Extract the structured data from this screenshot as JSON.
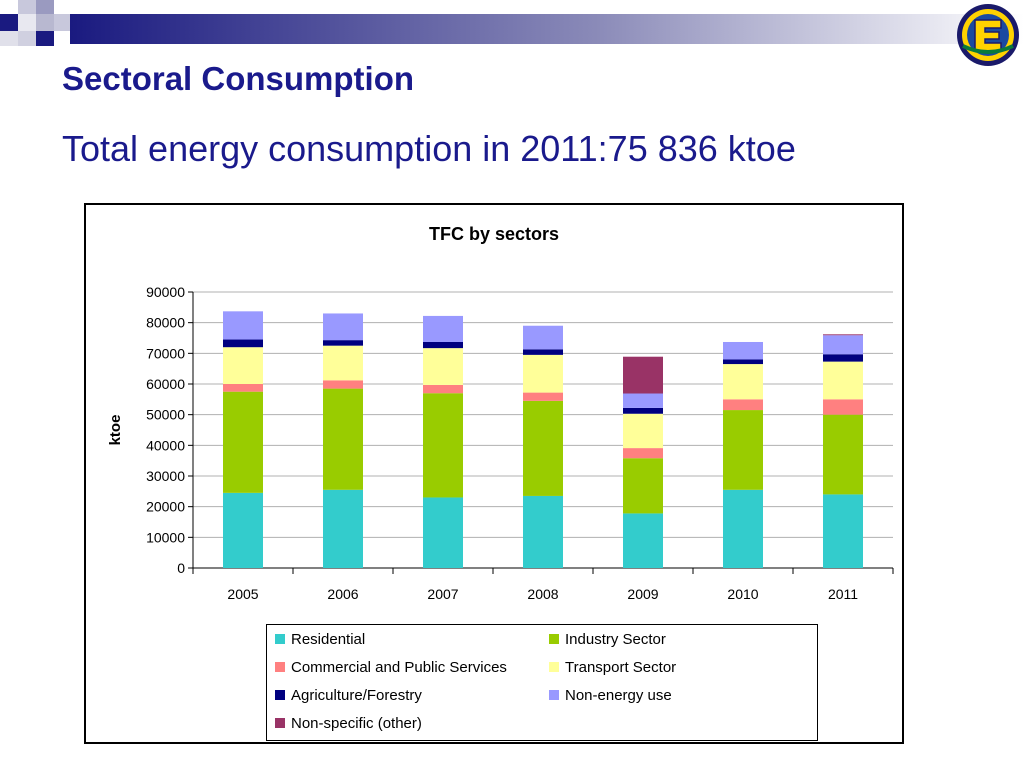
{
  "slide": {
    "title": "Sectoral Consumption",
    "subtitle": "Total energy consumption in 2011:75 836 ktoe"
  },
  "chart_data": {
    "type": "bar",
    "stacked": true,
    "title": "TFC by sectors",
    "xlabel": "",
    "ylabel": "ktoe",
    "ylim": [
      0,
      90000
    ],
    "yticks": [
      "0",
      "10000",
      "20000",
      "30000",
      "40000",
      "50000",
      "60000",
      "70000",
      "80000",
      "90000"
    ],
    "categories": [
      "2005",
      "2006",
      "2007",
      "2008",
      "2009",
      "2010",
      "2011"
    ],
    "grid": true,
    "legend_position": "bottom",
    "series": [
      {
        "name": "Residential",
        "color": "#33cccc",
        "values": [
          24500,
          25500,
          23000,
          23500,
          17800,
          25500,
          24000
        ]
      },
      {
        "name": "Industry Sector",
        "color": "#99cc00",
        "values": [
          33000,
          33000,
          34000,
          31000,
          18000,
          26000,
          26000
        ]
      },
      {
        "name": "Commercial and Public Services",
        "color": "#ff8080",
        "values": [
          2500,
          2700,
          2700,
          2700,
          3300,
          3500,
          5000
        ]
      },
      {
        "name": "Transport Sector",
        "color": "#ffff99",
        "values": [
          12000,
          11300,
          12000,
          12300,
          11200,
          11500,
          12300
        ]
      },
      {
        "name": "Agriculture/Forestry",
        "color": "#000080",
        "values": [
          2500,
          1800,
          2000,
          1800,
          1900,
          1500,
          2400
        ]
      },
      {
        "name": "Non-energy use",
        "color": "#9999ff",
        "values": [
          9200,
          8700,
          8500,
          7700,
          4700,
          5700,
          6200
        ]
      },
      {
        "name": "Non-specific (other)",
        "color": "#993366",
        "values": [
          0,
          0,
          0,
          0,
          12000,
          0,
          300
        ]
      }
    ]
  }
}
